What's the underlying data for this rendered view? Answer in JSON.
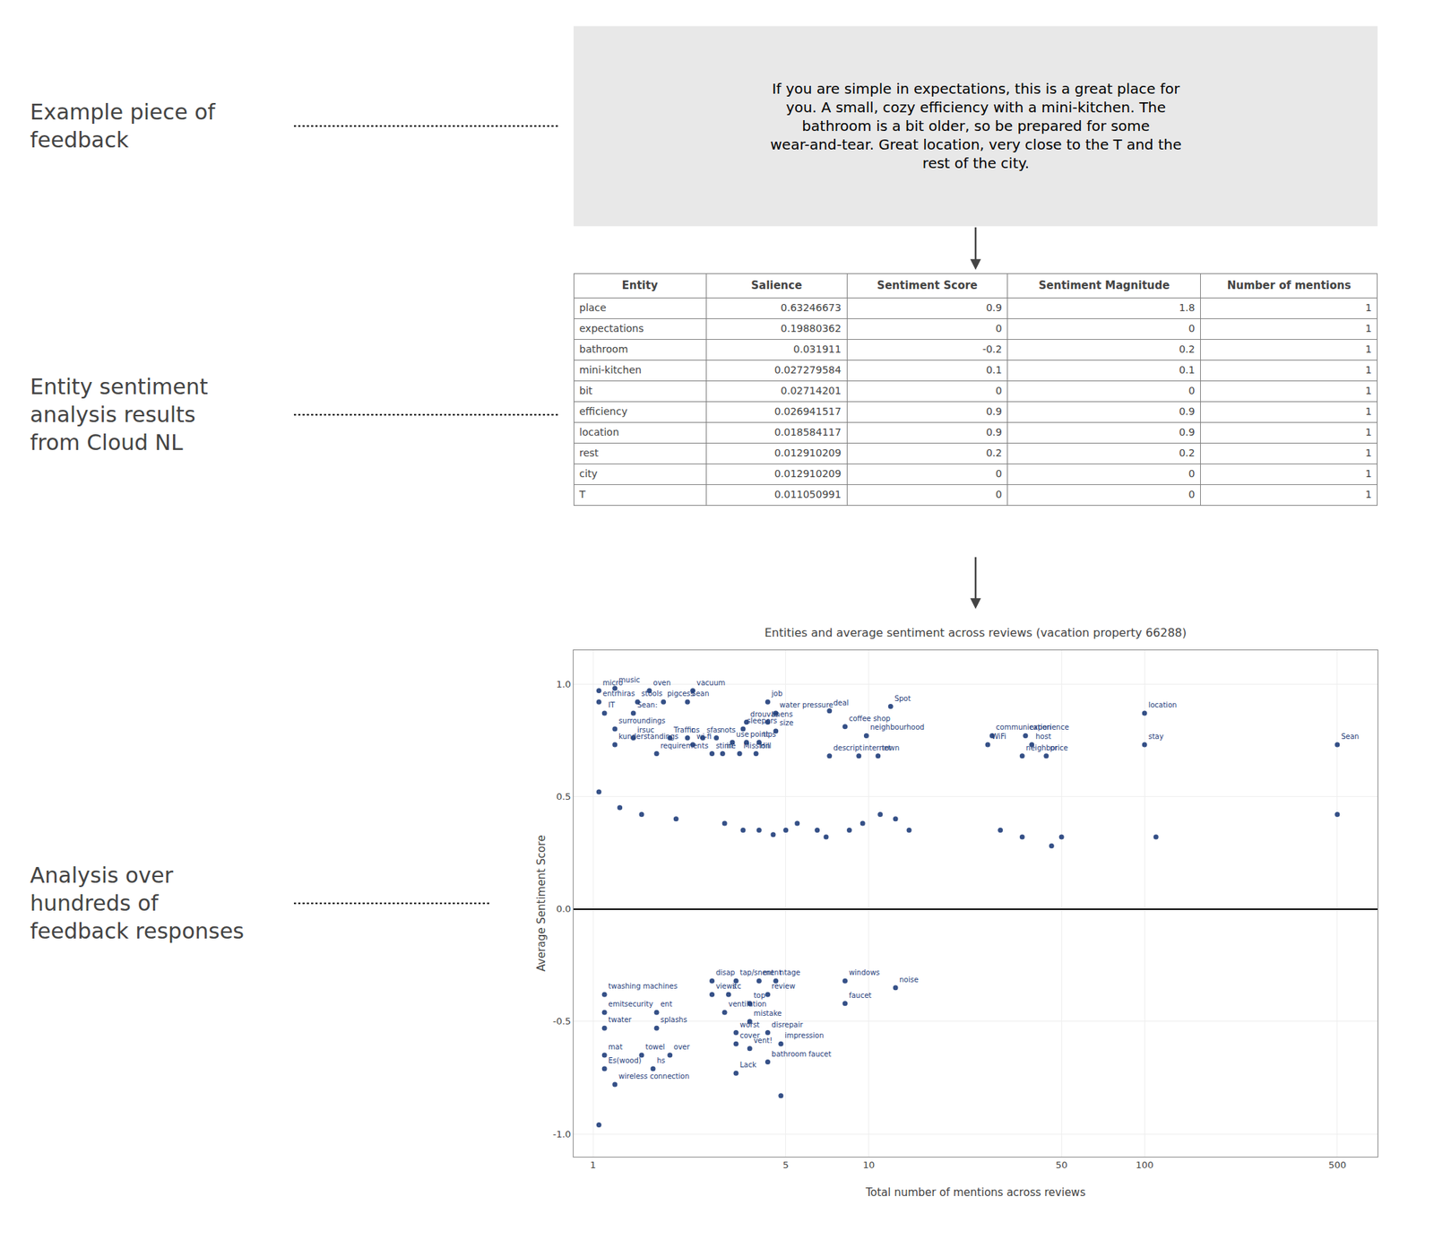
{
  "chart_data": [
    {
      "type": "text",
      "annotations": [
        "Example piece of\nfeedback"
      ],
      "text": "If you are simple in expectations, this is a great place for\nyou. A small, cozy efficiency with a mini-kitchen. The\nbathroom is a bit older, so be prepared for some\nwear-and-tear. Great location, very close to the T and the\nrest of the city.",
      "color": "#e8e8e8"
    },
    {
      "type": "table",
      "annotations": [
        "Entity sentiment\nanalysis results\nfrom Cloud NL"
      ],
      "columns": [
        "Entity",
        "Salience",
        "Sentiment Score",
        "Sentiment Magnitude",
        "Number of mentions"
      ],
      "rows": [
        [
          "place",
          "0.63246673",
          "0.9",
          "1.8",
          "1"
        ],
        [
          "expectations",
          "0.19880362",
          "0",
          "0",
          "1"
        ],
        [
          "bathroom",
          "0.031911",
          "-0.2",
          "0.2",
          "1"
        ],
        [
          "mini-kitchen",
          "0.027279584",
          "0.1",
          "0.1",
          "1"
        ],
        [
          "bit",
          "0.02714201",
          "0",
          "0",
          "1"
        ],
        [
          "efficiency",
          "0.026941517",
          "0.9",
          "0.9",
          "1"
        ],
        [
          "location",
          "0.018584117",
          "0.9",
          "0.9",
          "1"
        ],
        [
          "rest",
          "0.012910209",
          "0.2",
          "0.2",
          "1"
        ],
        [
          "city",
          "0.012910209",
          "0",
          "0",
          "1"
        ],
        [
          "T",
          "0.011050991",
          "0",
          "0",
          "1"
        ]
      ]
    },
    {
      "type": "scatter",
      "annotations": [
        "Analysis over\nhundreds of\nfeedback responses"
      ],
      "title": "Entities and average sentiment across reviews (vacation property 66288)",
      "x_label": "Total number of mentions across reviews",
      "y_label": "Average Sentiment Score",
      "log": "x",
      "grid": true,
      "color": "#1f3d7a",
      "xlim": [
        0.85,
        700
      ],
      "ylim": [
        -1.1,
        1.15
      ],
      "xticks": [
        1,
        5,
        10,
        50,
        100,
        500
      ],
      "yticks": [
        {
          "value": -1.0,
          "label": "-1.0"
        },
        {
          "value": -0.5,
          "label": "-0.5"
        },
        {
          "value": 0.0,
          "label": "0.0"
        },
        {
          "value": 0.5,
          "label": "0.5"
        },
        {
          "value": 1.0,
          "label": "1.0"
        }
      ],
      "x": [
        1.05,
        1.2,
        1.6,
        2.3,
        1.05,
        1.45,
        1.8,
        2.2,
        4.3,
        1.1,
        1.4,
        4.6,
        3.6,
        4.3,
        1.2,
        3.5,
        7.2,
        12,
        100,
        1.4,
        1.9,
        2.2,
        2.5,
        2.8,
        4.6,
        8.2,
        9.8,
        28,
        37,
        500,
        1.2,
        2.3,
        27,
        39,
        100,
        1.7,
        2.7,
        2.95,
        3.4,
        3.9,
        7.2,
        9.2,
        10.8,
        36,
        44,
        3.2,
        3.6,
        4.0,
        1.05,
        1.25,
        1.5,
        2.0,
        3.0,
        3.5,
        4.0,
        4.5,
        5.0,
        5.5,
        6.5,
        7.0,
        8.5,
        9.5,
        11,
        12.5,
        14,
        30,
        36,
        46,
        50,
        110,
        500,
        2.7,
        3.3,
        4.0,
        4.6,
        1.1,
        2.7,
        3.1,
        3.7,
        4.3,
        8.2,
        8.2,
        12.5,
        1.1,
        1.7,
        3.0,
        3.7,
        1.1,
        1.7,
        3.3,
        4.3,
        3.3,
        3.7,
        4.8,
        1.1,
        1.5,
        1.9,
        4.3,
        1.1,
        1.65,
        3.3,
        1.2,
        4.8,
        1.05
      ],
      "values": [
        0.97,
        0.98,
        0.97,
        0.97,
        0.92,
        0.92,
        0.92,
        0.92,
        0.92,
        0.87,
        0.87,
        0.87,
        0.83,
        0.83,
        0.8,
        0.8,
        0.88,
        0.9,
        0.87,
        0.76,
        0.76,
        0.76,
        0.76,
        0.76,
        0.79,
        0.81,
        0.77,
        0.77,
        0.77,
        0.73,
        0.73,
        0.73,
        0.73,
        0.73,
        0.73,
        0.69,
        0.69,
        0.69,
        0.69,
        0.69,
        0.68,
        0.68,
        0.68,
        0.68,
        0.68,
        0.74,
        0.74,
        0.74,
        0.52,
        0.45,
        0.42,
        0.4,
        0.38,
        0.35,
        0.35,
        0.33,
        0.35,
        0.38,
        0.35,
        0.32,
        0.35,
        0.38,
        0.42,
        0.4,
        0.35,
        0.35,
        0.32,
        0.28,
        0.32,
        0.32,
        0.42,
        -0.32,
        -0.32,
        -0.32,
        -0.32,
        -0.38,
        -0.38,
        -0.38,
        -0.42,
        -0.38,
        -0.32,
        -0.42,
        -0.35,
        -0.46,
        -0.46,
        -0.46,
        -0.5,
        -0.53,
        -0.53,
        -0.55,
        -0.55,
        -0.6,
        -0.62,
        -0.6,
        -0.65,
        -0.65,
        -0.65,
        -0.68,
        -0.71,
        -0.71,
        -0.73,
        -0.78,
        -0.83,
        -0.96
      ],
      "point_labels": [
        "micro",
        "music",
        "oven",
        "vacuum",
        "entrhiras",
        "stools",
        "pigcess",
        "Sean",
        "job",
        "IT",
        "Sean:",
        "water pressure",
        "drouvas",
        "linens",
        "surroundings",
        "sleepers",
        "deal",
        "Spot",
        "location",
        "irsuc",
        "Traffic",
        "ns",
        "sfas",
        "nots",
        "size",
        "coffee shop",
        "neighbourhood",
        "communication",
        "experience",
        "Sean",
        "kunderstandings",
        "wi-fi",
        "WiFi",
        "host",
        "stay",
        "requirements",
        "stime",
        "in",
        "Mission",
        "Hill",
        "descript",
        "internet",
        "town",
        "neighbor",
        "price",
        "use",
        "point",
        "tips",
        null,
        null,
        null,
        null,
        null,
        null,
        null,
        null,
        null,
        null,
        null,
        null,
        null,
        null,
        null,
        null,
        null,
        null,
        null,
        null,
        null,
        null,
        null,
        "disap",
        "tap/snent",
        "ment",
        "ntage",
        "twashing machines",
        "views",
        "itc",
        "top",
        "review",
        "windows",
        "faucet",
        "noise",
        "emitsecurity",
        "ent",
        "ventilation",
        "mistake",
        "twater",
        "splashs",
        "worst",
        "disrepair",
        "cover",
        "vent!",
        "impression",
        "mat",
        "towel",
        "over",
        "bathroom faucet",
        "Es(wood)",
        "hs",
        "Lack",
        "wireless connection",
        null,
        null
      ]
    }
  ]
}
